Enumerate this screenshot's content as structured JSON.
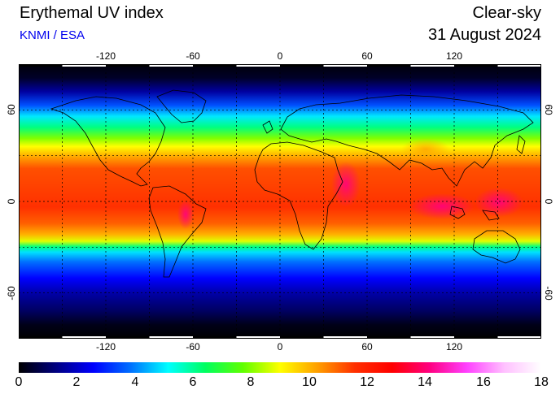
{
  "header": {
    "title": "Erythemal UV index",
    "credit": "KNMI / ESA",
    "sky_condition": "Clear-sky",
    "date": "31 August 2024"
  },
  "map": {
    "projection": "equirectangular",
    "lon_range": [
      -180,
      180
    ],
    "lat_range": [
      -90,
      90
    ],
    "gridlines": "dashed, every 30 degrees",
    "lon_ticks": [
      "-120",
      "-60",
      "0",
      "60",
      "120"
    ],
    "lat_ticks": [
      "60",
      "0",
      "-60"
    ],
    "coastlines": true
  },
  "colorbar": {
    "min": 0,
    "max": 18,
    "ticks": [
      "0",
      "2",
      "4",
      "6",
      "8",
      "10",
      "12",
      "14",
      "16",
      "18"
    ],
    "colors": [
      "#000000",
      "#000080",
      "#0000ff",
      "#0070ff",
      "#00ffff",
      "#00ff60",
      "#60ff00",
      "#ffff00",
      "#ffa000",
      "#ff3000",
      "#ff0000",
      "#ff0080",
      "#ff40ff",
      "#ffc0ff",
      "#ffffff"
    ]
  }
}
